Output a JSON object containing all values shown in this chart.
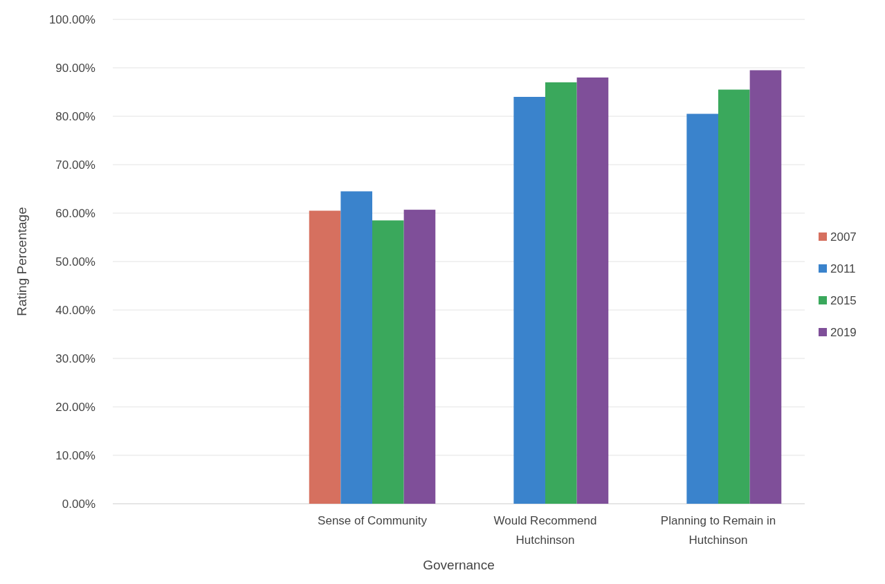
{
  "chart_data": {
    "type": "bar",
    "xlabel": "Governance",
    "ylabel": "Rating Percentage",
    "categories": [
      null,
      "Sense of Community",
      "Would Recommend Hutchinson",
      "Planning to Remain in Hutchinson"
    ],
    "series": [
      {
        "name": "2007",
        "color": "#d6705f",
        "values": [
          null,
          60.5,
          null,
          null
        ]
      },
      {
        "name": "2011",
        "color": "#3a83cc",
        "values": [
          null,
          64.5,
          84,
          80.5
        ]
      },
      {
        "name": "2015",
        "color": "#3aa85c",
        "values": [
          null,
          58.5,
          87,
          85.5
        ]
      },
      {
        "name": "2019",
        "color": "#7f4f99",
        "values": [
          null,
          60.7,
          88,
          89.5
        ]
      }
    ],
    "ylim": [
      0,
      100
    ],
    "yticks": [
      {
        "value": 0,
        "label": "0.00%"
      },
      {
        "value": 10,
        "label": "10.00%"
      },
      {
        "value": 20,
        "label": "20.00%"
      },
      {
        "value": 30,
        "label": "30.00%"
      },
      {
        "value": 40,
        "label": "40.00%"
      },
      {
        "value": 50,
        "label": "50.00%"
      },
      {
        "value": 60,
        "label": "60.00%"
      },
      {
        "value": 70,
        "label": "70.00%"
      },
      {
        "value": 80,
        "label": "80.00%"
      },
      {
        "value": 90,
        "label": "90.00%"
      },
      {
        "value": 100,
        "label": "100.00%"
      }
    ],
    "grid": "y",
    "legend": "right"
  }
}
